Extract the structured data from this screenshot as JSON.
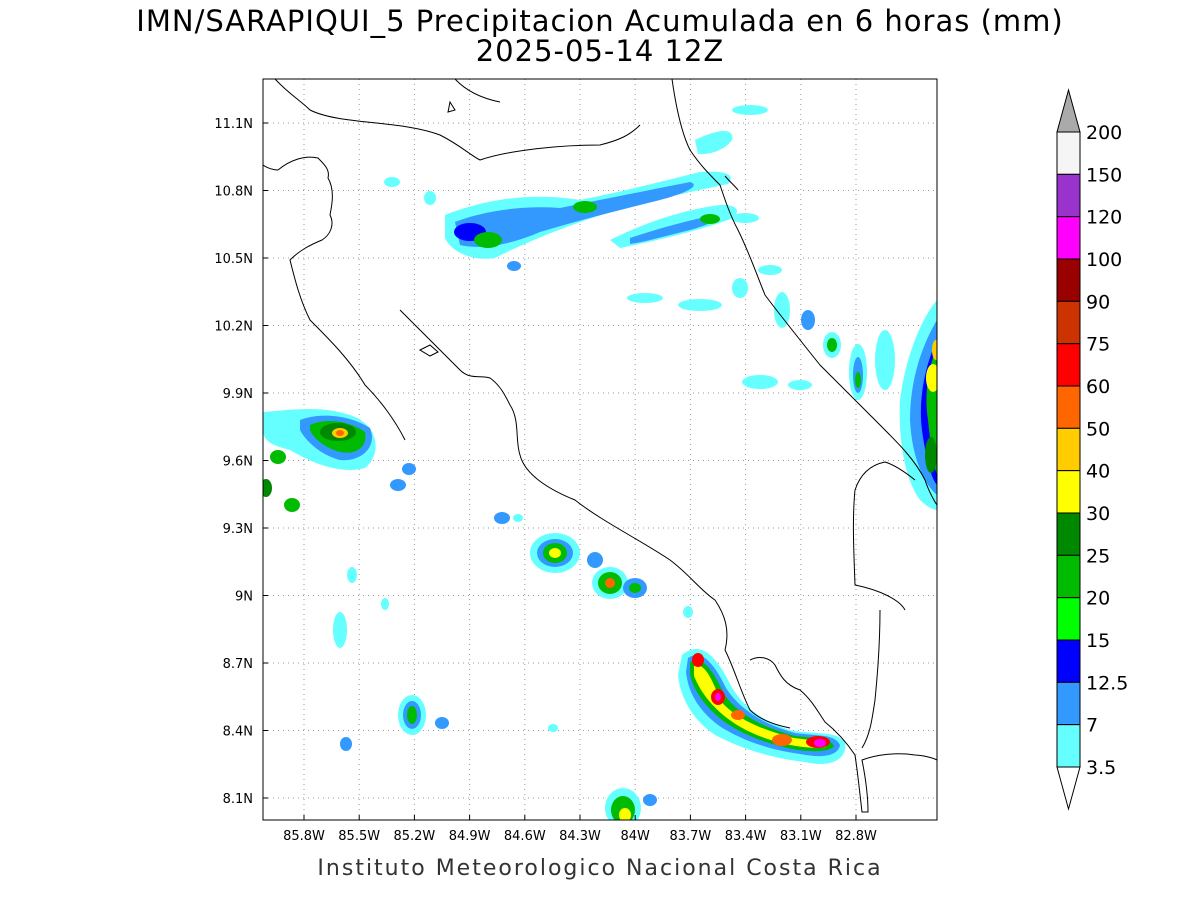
{
  "title": "IMN/SARAPIQUI_5 Precipitacion Acumulada en 6 horas (mm)",
  "subtitle": "2025-05-14 12Z",
  "footer": "Instituto Meteorologico Nacional Costa Rica",
  "map": {
    "lon_range": [
      -86.0,
      -83.0
    ],
    "lat_range": [
      8.0,
      11.3
    ],
    "x_ticks": [
      "85.8W",
      "85.5W",
      "85.2W",
      "84.9W",
      "84.6W",
      "84.3W",
      "84W",
      "83.7W",
      "83.4W",
      "83.1W",
      "82.8W"
    ],
    "y_ticks": [
      "11.1N",
      "10.8N",
      "10.5N",
      "10.2N",
      "9.9N",
      "9.6N",
      "9.3N",
      "9N",
      "8.7N",
      "8.4N",
      "8.1N"
    ],
    "grid": "dotted"
  },
  "colorbar": {
    "levels": [
      "200",
      "150",
      "120",
      "100",
      "90",
      "75",
      "60",
      "50",
      "40",
      "30",
      "25",
      "20",
      "15",
      "12.5",
      "7",
      "3.5"
    ],
    "colors": [
      "#f5f5f5",
      "#9933cc",
      "#ff00ff",
      "#990000",
      "#cc3300",
      "#ff0000",
      "#ff6600",
      "#ffcc00",
      "#ffff00",
      "#008800",
      "#00bb00",
      "#00ff00",
      "#0000ff",
      "#3399ff",
      "#66ffff"
    ],
    "top_arrow_color": "#aaaaaa",
    "bottom_arrow_color": "#ffffff"
  }
}
